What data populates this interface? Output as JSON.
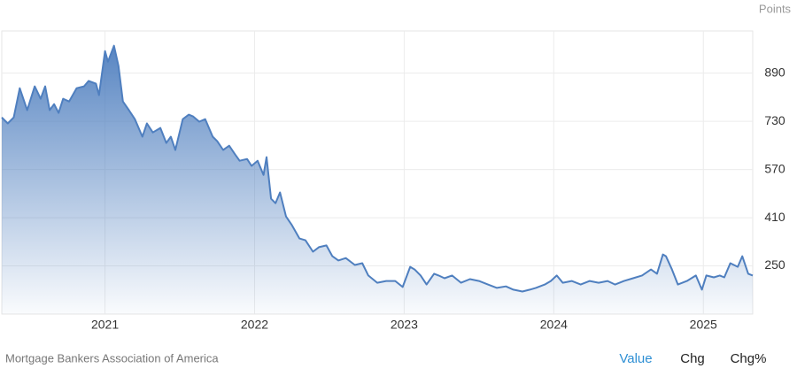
{
  "chart_data": {
    "type": "area",
    "y_label": "Points",
    "source": "Mortgage Bankers Association of America",
    "color": "#4f7fbf",
    "grid": true,
    "xlim": [
      2020.31,
      2025.33
    ],
    "xticks": [
      2021,
      2022,
      2023,
      2024,
      2025
    ],
    "ylim": [
      90,
      1030
    ],
    "yticks": [
      250,
      410,
      570,
      730,
      890
    ],
    "x": [
      2020.31,
      2020.35,
      2020.39,
      2020.43,
      2020.48,
      2020.53,
      2020.57,
      2020.6,
      2020.63,
      2020.66,
      2020.69,
      2020.72,
      2020.76,
      2020.81,
      2020.86,
      2020.89,
      2020.94,
      2020.96,
      2021.0,
      2021.02,
      2021.06,
      2021.09,
      2021.12,
      2021.16,
      2021.2,
      2021.25,
      2021.28,
      2021.32,
      2021.37,
      2021.41,
      2021.44,
      2021.47,
      2021.52,
      2021.56,
      2021.59,
      2021.63,
      2021.67,
      2021.72,
      2021.75,
      2021.79,
      2021.83,
      2021.87,
      2021.9,
      2021.95,
      2021.98,
      2022.02,
      2022.06,
      2022.08,
      2022.11,
      2022.14,
      2022.17,
      2022.21,
      2022.25,
      2022.3,
      2022.34,
      2022.39,
      2022.43,
      2022.48,
      2022.52,
      2022.56,
      2022.61,
      2022.67,
      2022.72,
      2022.76,
      2022.82,
      2022.88,
      2022.94,
      2022.99,
      2023.04,
      2023.07,
      2023.11,
      2023.15,
      2023.2,
      2023.23,
      2023.27,
      2023.32,
      2023.38,
      2023.44,
      2023.5,
      2023.56,
      2023.62,
      2023.68,
      2023.73,
      2023.79,
      2023.84,
      2023.88,
      2023.94,
      2023.98,
      2024.02,
      2024.06,
      2024.12,
      2024.18,
      2024.24,
      2024.3,
      2024.36,
      2024.41,
      2024.47,
      2024.53,
      2024.59,
      2024.65,
      2024.69,
      2024.73,
      2024.75,
      2024.79,
      2024.83,
      2024.89,
      2024.95,
      2024.99,
      2025.02,
      2025.07,
      2025.11,
      2025.14,
      2025.18,
      2025.23,
      2025.26,
      2025.3,
      2025.33
    ],
    "values": [
      743,
      723,
      743,
      840,
      767,
      846,
      805,
      846,
      767,
      787,
      758,
      805,
      796,
      840,
      846,
      864,
      855,
      817,
      963,
      928,
      981,
      914,
      796,
      767,
      737,
      679,
      723,
      693,
      708,
      658,
      679,
      635,
      737,
      752,
      746,
      729,
      737,
      679,
      664,
      635,
      649,
      620,
      599,
      605,
      582,
      599,
      552,
      611,
      473,
      458,
      494,
      414,
      385,
      341,
      335,
      297,
      312,
      318,
      282,
      268,
      276,
      253,
      259,
      218,
      194,
      200,
      200,
      180,
      247,
      238,
      218,
      188,
      224,
      218,
      209,
      218,
      194,
      206,
      200,
      188,
      177,
      182,
      171,
      165,
      171,
      177,
      188,
      200,
      218,
      194,
      200,
      188,
      200,
      194,
      200,
      188,
      200,
      209,
      218,
      238,
      224,
      288,
      282,
      238,
      188,
      200,
      218,
      171,
      218,
      212,
      218,
      212,
      259,
      247,
      282,
      224,
      218
    ]
  },
  "controls": {
    "buttons": [
      "Value",
      "Chg",
      "Chg%"
    ],
    "active": 0
  }
}
